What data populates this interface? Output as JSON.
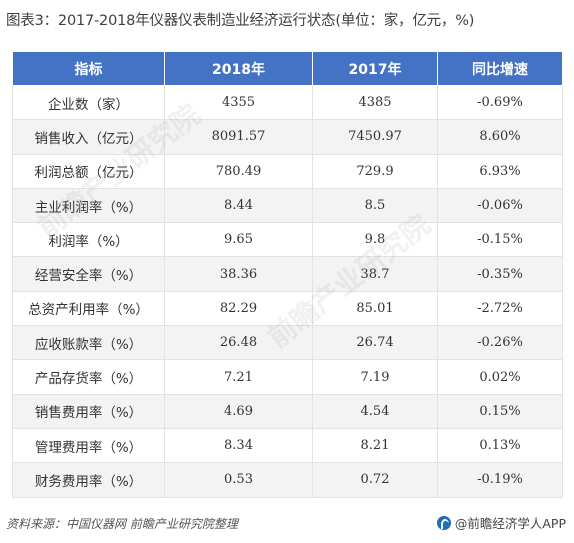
{
  "title": "图表3：2017-2018年仪器仪表制造业经济运行状态(单位：家，亿元，%)",
  "chart_data": {
    "type": "table",
    "columns": [
      "指标",
      "2018年",
      "2017年",
      "同比增速"
    ],
    "rows": [
      [
        "企业数（家）",
        "4355",
        "4385",
        "-0.69%"
      ],
      [
        "销售收入（亿元）",
        "8091.57",
        "7450.97",
        "8.60%"
      ],
      [
        "利润总额（亿元）",
        "780.49",
        "729.9",
        "6.93%"
      ],
      [
        "主业利润率（%）",
        "8.44",
        "8.5",
        "-0.06%"
      ],
      [
        "利润率（%）",
        "9.65",
        "9.8",
        "-0.15%"
      ],
      [
        "经营安全率（%）",
        "38.36",
        "38.7",
        "-0.35%"
      ],
      [
        "总资产利用率（%）",
        "82.29",
        "85.01",
        "-2.72%"
      ],
      [
        "应收账款率（%）",
        "26.48",
        "26.74",
        "-0.26%"
      ],
      [
        "产品存货率（%）",
        "7.21",
        "7.19",
        "0.02%"
      ],
      [
        "销售费用率（%）",
        "4.69",
        "4.54",
        "0.15%"
      ],
      [
        "管理费用率（%）",
        "8.34",
        "8.21",
        "0.13%"
      ],
      [
        "财务费用率（%）",
        "0.53",
        "0.72",
        "-0.19%"
      ]
    ]
  },
  "footer": {
    "source": "资料来源：中国仪器网 前瞻产业研究院整理",
    "brand": "@前瞻经济学人APP"
  },
  "watermark": {
    "text": "前瞻产业研究院"
  },
  "colors": {
    "header_bg": "#4472c4",
    "row_alt_bg": "#f3f3f3"
  }
}
